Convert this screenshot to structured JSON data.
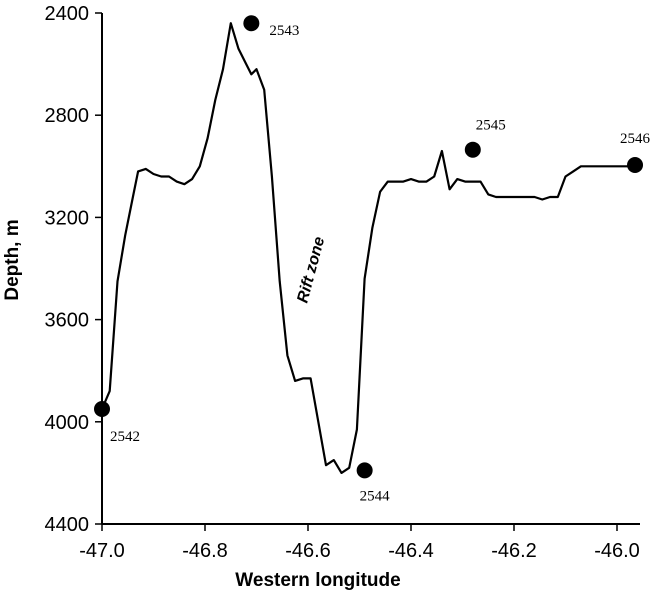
{
  "chart_data": {
    "type": "line",
    "title": "",
    "xlabel": "Western longitude",
    "ylabel": "Depth, m",
    "xlim": [
      -47.0,
      -45.95
    ],
    "ylim": [
      4400,
      2400
    ],
    "y_inverted": true,
    "grid": false,
    "x_ticks": [
      -47.0,
      -46.8,
      -46.6,
      -46.4,
      -46.2,
      -46.0
    ],
    "x_tick_labels": [
      "-47.0",
      "-46.8",
      "-46.6",
      "-46.4",
      "-46.2",
      "-46.0"
    ],
    "y_ticks": [
      2400,
      2800,
      3200,
      3600,
      4000,
      4400
    ],
    "y_tick_labels": [
      "2400",
      "2800",
      "3200",
      "3600",
      "4000",
      "4400"
    ],
    "series": [
      {
        "x": [
          -47.0,
          -46.985,
          -46.97,
          -46.955,
          -46.94,
          -46.93,
          -46.915,
          -46.9,
          -46.885,
          -46.87,
          -46.855,
          -46.84,
          -46.825,
          -46.81,
          -46.795,
          -46.78,
          -46.765,
          -46.75,
          -46.735,
          -46.72,
          -46.71,
          -46.7,
          -46.685,
          -46.67,
          -46.655,
          -46.64,
          -46.625,
          -46.61,
          -46.595,
          -46.58,
          -46.565,
          -46.55,
          -46.535,
          -46.52,
          -46.505,
          -46.49,
          -46.475,
          -46.46,
          -46.445,
          -46.43,
          -46.415,
          -46.4,
          -46.385,
          -46.37,
          -46.355,
          -46.34,
          -46.325,
          -46.31,
          -46.295,
          -46.28,
          -46.265,
          -46.25,
          -46.235,
          -46.22,
          -46.205,
          -46.19,
          -46.175,
          -46.16,
          -46.145,
          -46.13,
          -46.115,
          -46.1,
          -46.085,
          -46.07,
          -46.055,
          -46.04,
          -46.025,
          -46.01,
          -45.995,
          -45.98,
          -45.965
        ],
        "y": [
          3950,
          3880,
          3450,
          3270,
          3120,
          3020,
          3010,
          3030,
          3040,
          3040,
          3060,
          3070,
          3050,
          3000,
          2890,
          2740,
          2620,
          2440,
          2540,
          2600,
          2640,
          2620,
          2700,
          3040,
          3450,
          3740,
          3840,
          3830,
          3830,
          4000,
          4170,
          4150,
          4200,
          4180,
          4030,
          3440,
          3240,
          3100,
          3060,
          3060,
          3060,
          3050,
          3060,
          3060,
          3040,
          2940,
          3090,
          3050,
          3060,
          3060,
          3060,
          3110,
          3120,
          3120,
          3120,
          3120,
          3120,
          3120,
          3130,
          3120,
          3120,
          3040,
          3020,
          3000,
          3000,
          3000,
          3000,
          3000,
          3000,
          3000,
          3000
        ]
      }
    ],
    "stations": [
      {
        "label": "2542",
        "x": -47.0,
        "y": 3950
      },
      {
        "label": "2543",
        "x": -46.71,
        "y": 2440
      },
      {
        "label": "2544",
        "x": -46.49,
        "y": 4190
      },
      {
        "label": "2545",
        "x": -46.28,
        "y": 2935
      },
      {
        "label": "2546",
        "x": -45.965,
        "y": 2995
      }
    ],
    "annotations": [
      {
        "text": "Rift zone",
        "x": -46.585,
        "y": 3410,
        "rotation": -75
      }
    ]
  }
}
